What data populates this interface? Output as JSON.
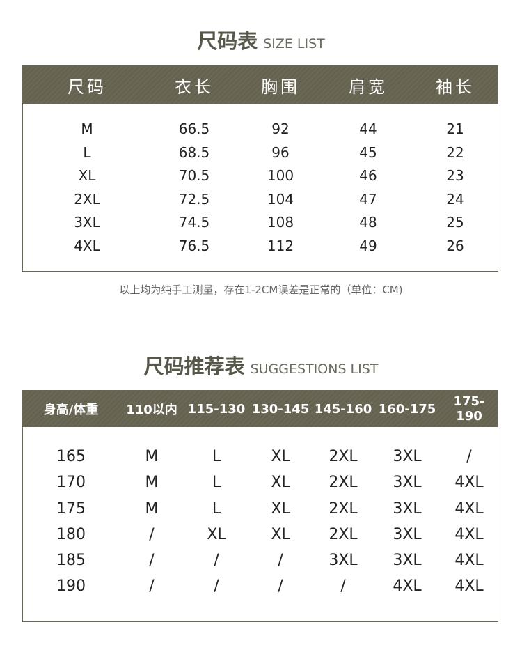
{
  "size_list": {
    "title_cn": "尺码表",
    "title_en": "SIZE LIST",
    "headers": [
      "尺码",
      "衣长",
      "胸围",
      "肩宽",
      "袖长"
    ],
    "rows": [
      [
        "M",
        "66.5",
        "92",
        "44",
        "21"
      ],
      [
        "L",
        "68.5",
        "96",
        "45",
        "22"
      ],
      [
        "XL",
        "70.5",
        "100",
        "46",
        "23"
      ],
      [
        "2XL",
        "72.5",
        "104",
        "47",
        "24"
      ],
      [
        "3XL",
        "74.5",
        "108",
        "48",
        "25"
      ],
      [
        "4XL",
        "76.5",
        "112",
        "49",
        "26"
      ]
    ],
    "note": "以上均为纯手工测量，存在1-2CM误差是正常的（单位：CM)"
  },
  "suggestions": {
    "title_cn": "尺码推荐表",
    "title_en": "SUGGESTIONS LIST",
    "headers": [
      "身高/体重",
      "110以内",
      "115-130",
      "130-145",
      "145-160",
      "160-175",
      "175-190"
    ],
    "rows": [
      [
        "165",
        "M",
        "L",
        "XL",
        "2XL",
        "3XL",
        "/"
      ],
      [
        "170",
        "M",
        "L",
        "XL",
        "2XL",
        "3XL",
        "4XL"
      ],
      [
        "175",
        "M",
        "L",
        "XL",
        "2XL",
        "3XL",
        "4XL"
      ],
      [
        "180",
        "/",
        "XL",
        "XL",
        "2XL",
        "3XL",
        "4XL"
      ],
      [
        "185",
        "/",
        "/",
        "/",
        "3XL",
        "3XL",
        "4XL"
      ],
      [
        "190",
        "/",
        "/",
        "/",
        "/",
        "4XL",
        "4XL"
      ]
    ]
  },
  "colors": {
    "header_bg": "#666250",
    "title": "#58584a"
  }
}
